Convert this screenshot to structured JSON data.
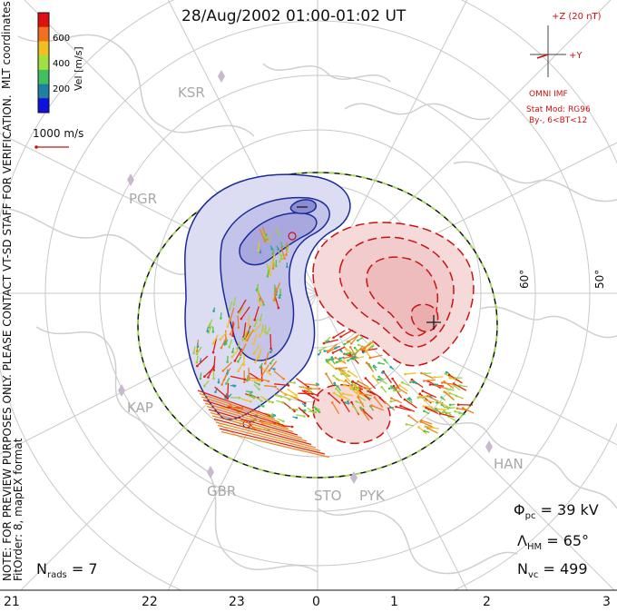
{
  "title": "28/Aug/2002 01:00-01:02 UT",
  "colorbar": {
    "label": "Vel [m/s]",
    "ticks": [
      "600",
      "400",
      "200"
    ],
    "colors": [
      "#e01010",
      "#f07020",
      "#f0c020",
      "#a0e040",
      "#40c060",
      "#2080a0",
      "#1010e0"
    ]
  },
  "vector_scale": {
    "label": "1000 m/s"
  },
  "mlt_label": "MLT coordinates",
  "imf": {
    "z": "+Z (20 nT)",
    "y": "+Y",
    "source": "OMNI IMF",
    "model_line1": "Stat Mod: RG96",
    "model_line2": "By-, 6<BT<12"
  },
  "note": "NOTE: FOR PREVIEW PURPOSES ONLY. PLEASE CONTACT VT-SD STAFF FOR VERIFICATION.",
  "fit_order": "FitOrder: 8, mapEX format",
  "stations": [
    "KSR",
    "PGR",
    "KAP",
    "GBR",
    "STO",
    "PYK",
    "HAN"
  ],
  "latitude_labels": [
    "60°",
    "50°"
  ],
  "stats": {
    "phi_pc": "= 39 kV",
    "lambda_hm": "= 65°",
    "n_vc": "= 499",
    "n_rads": "= 7"
  },
  "mlt_ticks": [
    "21",
    "22",
    "23",
    "0",
    "1",
    "2",
    "3"
  ]
}
